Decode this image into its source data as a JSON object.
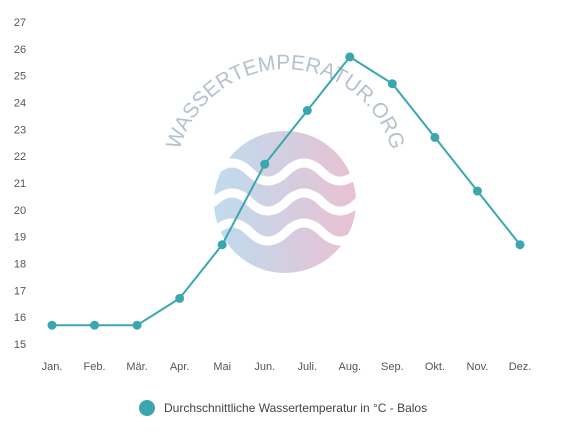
{
  "watermark": {
    "text": "WASSERTEMPERATUR.ORG"
  },
  "chart_data": {
    "type": "line",
    "categories": [
      "Jan.",
      "Feb.",
      "Mär.",
      "Apr.",
      "Mai",
      "Jun.",
      "Juli.",
      "Aug.",
      "Sep.",
      "Okt.",
      "Nov.",
      "Dez."
    ],
    "series": [
      {
        "name": "Durchschnittliche Wassertemperatur in °C - Balos",
        "values": [
          15.7,
          15.7,
          15.7,
          16.7,
          18.7,
          21.7,
          23.7,
          25.7,
          24.7,
          22.7,
          20.7,
          18.7
        ],
        "color": "#3aa7b0"
      }
    ],
    "yticks": [
      15,
      16,
      17,
      18,
      19,
      20,
      21,
      22,
      23,
      24,
      25,
      26,
      27
    ],
    "ylim": [
      15,
      27
    ],
    "grid": false,
    "legend_position": "bottom"
  }
}
